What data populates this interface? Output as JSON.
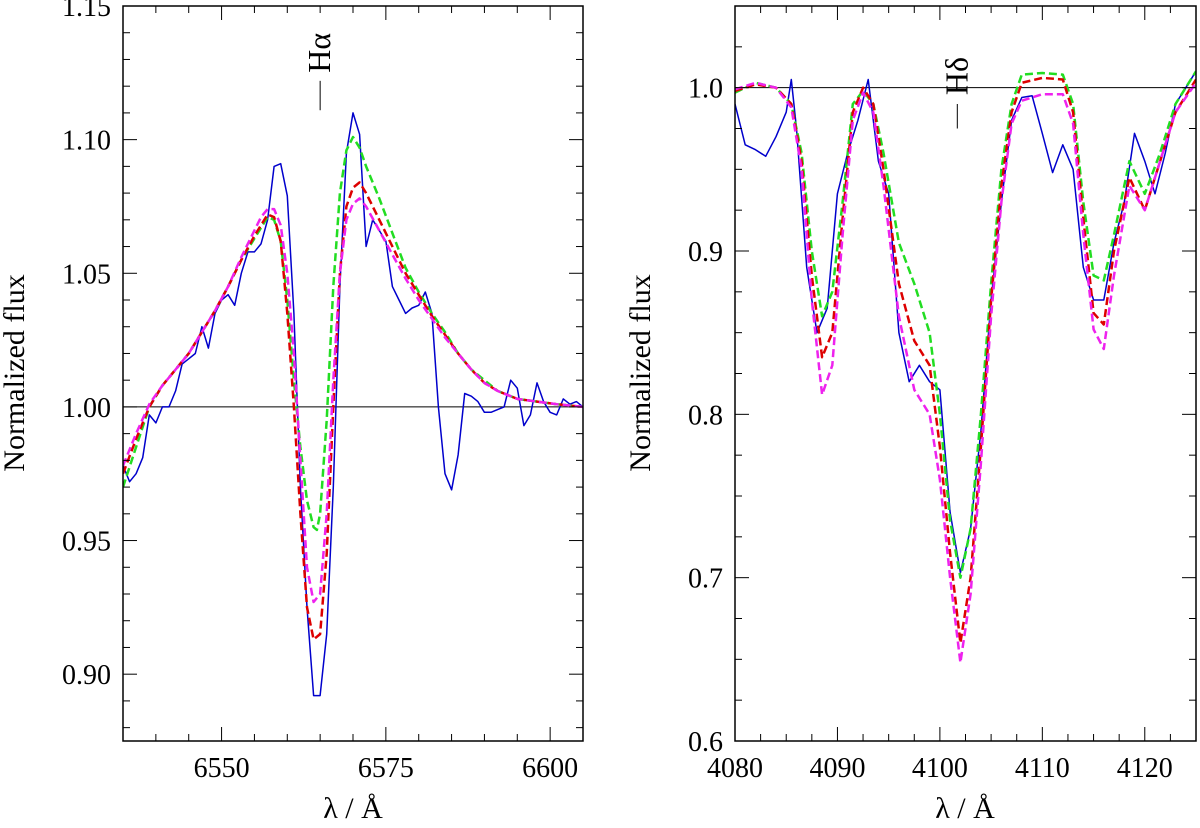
{
  "chart_data": [
    {
      "type": "line",
      "panel": "left",
      "xlabel": "λ / Å",
      "ylabel": "Normalized flux",
      "xlim": [
        6535,
        6605
      ],
      "ylim": [
        0.875,
        1.15
      ],
      "xticks": [
        6550,
        6575,
        6600
      ],
      "xtick_labels": [
        "6550",
        "6575",
        "6600"
      ],
      "yticks": [
        0.9,
        0.95,
        1.0,
        1.05,
        1.1,
        1.15
      ],
      "ytick_labels": [
        "0.90",
        "0.95",
        "1.00",
        "1.05",
        "1.10",
        "1.15"
      ],
      "reference_line": 1.0,
      "line_marker": {
        "label": "Hα",
        "x": 6565,
        "y_from": 1.111,
        "y_to": 1.122
      },
      "series": [
        {
          "name": "observed",
          "color": "#0000cc",
          "dash": "solid",
          "x": [
            6535,
            6536,
            6537,
            6538,
            6539,
            6540,
            6541,
            6542,
            6543,
            6544,
            6545,
            6546,
            6547,
            6548,
            6549,
            6550,
            6551,
            6552,
            6553,
            6554,
            6555,
            6556,
            6557,
            6558,
            6559,
            6560,
            6561,
            6562,
            6563,
            6564,
            6565,
            6566,
            6567,
            6568,
            6569,
            6570,
            6571,
            6572,
            6573,
            6574,
            6575,
            6576,
            6577,
            6578,
            6579,
            6580,
            6581,
            6582,
            6583,
            6584,
            6585,
            6586,
            6587,
            6588,
            6589,
            6590,
            6591,
            6592,
            6593,
            6594,
            6595,
            6596,
            6597,
            6598,
            6599,
            6600,
            6601,
            6602,
            6603,
            6604,
            6605
          ],
          "y": [
            0.978,
            0.972,
            0.975,
            0.981,
            0.997,
            0.994,
            1.0,
            1.0,
            1.006,
            1.016,
            1.018,
            1.02,
            1.03,
            1.022,
            1.035,
            1.04,
            1.042,
            1.038,
            1.05,
            1.058,
            1.058,
            1.061,
            1.07,
            1.09,
            1.091,
            1.079,
            1.035,
            0.97,
            0.925,
            0.892,
            0.892,
            0.915,
            0.97,
            1.045,
            1.095,
            1.11,
            1.102,
            1.06,
            1.07,
            1.066,
            1.062,
            1.045,
            1.04,
            1.035,
            1.037,
            1.038,
            1.043,
            1.035,
            1.0,
            0.975,
            0.969,
            0.982,
            1.005,
            1.004,
            1.002,
            0.998,
            0.998,
            0.999,
            1.0,
            1.01,
            1.007,
            0.993,
            0.997,
            1.009,
            1.002,
            0.998,
            0.997,
            1.003,
            1.001,
            1.002,
            1.0
          ]
        },
        {
          "name": "model green",
          "color": "#22dd22",
          "dash": "dashed",
          "x": [
            6535,
            6537,
            6539,
            6541,
            6543,
            6545,
            6547,
            6549,
            6551,
            6553,
            6555,
            6556,
            6557,
            6558,
            6559,
            6560,
            6561,
            6562,
            6563,
            6564,
            6564.5,
            6565,
            6566,
            6567,
            6568,
            6569,
            6570,
            6571,
            6572,
            6574,
            6576,
            6578,
            6580,
            6582,
            6584,
            6586,
            6588,
            6590,
            6592,
            6595,
            6598,
            6601,
            6605
          ],
          "y": [
            0.97,
            0.985,
            1.0,
            1.008,
            1.014,
            1.02,
            1.028,
            1.036,
            1.045,
            1.055,
            1.063,
            1.067,
            1.071,
            1.07,
            1.062,
            1.04,
            1.01,
            0.985,
            0.965,
            0.955,
            0.954,
            0.96,
            0.995,
            1.045,
            1.08,
            1.096,
            1.101,
            1.097,
            1.09,
            1.078,
            1.065,
            1.052,
            1.043,
            1.035,
            1.028,
            1.02,
            1.014,
            1.01,
            1.006,
            1.003,
            1.002,
            1.001,
            1.0
          ]
        },
        {
          "name": "model red",
          "color": "#dd0000",
          "dash": "dashed",
          "x": [
            6535,
            6537,
            6539,
            6541,
            6543,
            6545,
            6547,
            6549,
            6551,
            6553,
            6555,
            6556,
            6557,
            6558,
            6559,
            6560,
            6561,
            6562,
            6563,
            6564,
            6565,
            6566,
            6567,
            6568,
            6569,
            6570,
            6571,
            6572,
            6574,
            6576,
            6578,
            6580,
            6582,
            6584,
            6586,
            6588,
            6590,
            6592,
            6595,
            6598,
            6601,
            6605
          ],
          "y": [
            0.975,
            0.988,
            1.0,
            1.008,
            1.014,
            1.02,
            1.028,
            1.036,
            1.045,
            1.055,
            1.064,
            1.068,
            1.072,
            1.071,
            1.062,
            1.035,
            1.0,
            0.96,
            0.925,
            0.913,
            0.915,
            0.945,
            1.0,
            1.05,
            1.075,
            1.082,
            1.084,
            1.08,
            1.07,
            1.06,
            1.05,
            1.042,
            1.034,
            1.027,
            1.02,
            1.014,
            1.009,
            1.006,
            1.003,
            1.002,
            1.001,
            1.0
          ]
        },
        {
          "name": "model magenta",
          "color": "#ee22ee",
          "dash": "dashed",
          "x": [
            6535,
            6537,
            6539,
            6541,
            6543,
            6545,
            6547,
            6549,
            6551,
            6553,
            6555,
            6556,
            6557,
            6558,
            6559,
            6560,
            6561,
            6562,
            6563,
            6564,
            6565,
            6566,
            6567,
            6568,
            6569,
            6570,
            6571,
            6572,
            6574,
            6576,
            6578,
            6580,
            6582,
            6584,
            6586,
            6588,
            6590,
            6592,
            6595,
            6598,
            6601,
            6605
          ],
          "y": [
            0.978,
            0.99,
            1.001,
            1.008,
            1.014,
            1.02,
            1.028,
            1.036,
            1.045,
            1.056,
            1.066,
            1.071,
            1.074,
            1.074,
            1.068,
            1.05,
            1.02,
            0.98,
            0.94,
            0.927,
            0.93,
            0.96,
            1.01,
            1.05,
            1.07,
            1.076,
            1.078,
            1.075,
            1.066,
            1.057,
            1.048,
            1.04,
            1.033,
            1.026,
            1.02,
            1.014,
            1.009,
            1.006,
            1.003,
            1.002,
            1.001,
            1.0
          ]
        }
      ]
    },
    {
      "type": "line",
      "panel": "right",
      "xlabel": "λ / Å",
      "ylabel": "Normalized flux",
      "xlim": [
        4080,
        4125
      ],
      "ylim": [
        0.6,
        1.05
      ],
      "xticks": [
        4080,
        4090,
        4100,
        4110,
        4120
      ],
      "xtick_labels": [
        "4080",
        "4090",
        "4100",
        "4110",
        "4120"
      ],
      "yticks": [
        0.6,
        0.7,
        0.8,
        0.9,
        1.0
      ],
      "ytick_labels": [
        "0.6",
        "0.7",
        "0.8",
        "0.9",
        "1.0"
      ],
      "reference_line": 1.0,
      "line_marker": {
        "label": "Hδ",
        "x": 4101.7,
        "y_from": 0.975,
        "y_to": 0.99
      },
      "series": [
        {
          "name": "observed",
          "color": "#0000cc",
          "dash": "solid",
          "x": [
            4080,
            4081,
            4082,
            4083,
            4084,
            4085,
            4085.5,
            4086,
            4087,
            4088,
            4089,
            4090,
            4091,
            4092,
            4093,
            4094,
            4095,
            4096,
            4097,
            4098,
            4099,
            4100,
            4101,
            4102,
            4103,
            4104,
            4105,
            4106,
            4107,
            4108,
            4109,
            4110,
            4111,
            4112,
            4113,
            4114,
            4115,
            4116,
            4117,
            4118,
            4119,
            4120,
            4121,
            4122,
            4123,
            4124,
            4125
          ],
          "y": [
            0.99,
            0.965,
            0.962,
            0.958,
            0.97,
            0.985,
            1.005,
            0.975,
            0.89,
            0.85,
            0.865,
            0.935,
            0.96,
            0.98,
            1.005,
            0.955,
            0.935,
            0.85,
            0.82,
            0.83,
            0.82,
            0.815,
            0.74,
            0.703,
            0.73,
            0.79,
            0.87,
            0.93,
            0.98,
            0.994,
            0.995,
            0.972,
            0.948,
            0.965,
            0.95,
            0.89,
            0.87,
            0.87,
            0.905,
            0.93,
            0.972,
            0.955,
            0.935,
            0.96,
            0.99,
            1.0,
            1.01
          ]
        },
        {
          "name": "model green",
          "color": "#22dd22",
          "dash": "dashed",
          "x": [
            4080,
            4082,
            4084,
            4085.5,
            4086.5,
            4087.5,
            4088.5,
            4089.5,
            4090.5,
            4091.5,
            4092.5,
            4093.5,
            4094.5,
            4096,
            4097.5,
            4099,
            4100,
            4101,
            4102,
            4103,
            4104,
            4105,
            4106,
            4107,
            4108,
            4110,
            4112,
            4113,
            4114,
            4115,
            4116,
            4117,
            4118.5,
            4120,
            4121.5,
            4123,
            4125
          ],
          "y": [
            0.997,
            1.003,
            1.0,
            0.99,
            0.96,
            0.9,
            0.86,
            0.875,
            0.93,
            0.99,
            0.998,
            0.99,
            0.96,
            0.905,
            0.88,
            0.85,
            0.8,
            0.735,
            0.7,
            0.73,
            0.8,
            0.88,
            0.95,
            0.99,
            1.008,
            1.009,
            1.008,
            0.99,
            0.93,
            0.885,
            0.882,
            0.91,
            0.955,
            0.935,
            0.96,
            0.99,
            1.01
          ]
        },
        {
          "name": "model red",
          "color": "#dd0000",
          "dash": "dashed",
          "x": [
            4080,
            4082,
            4084,
            4085.5,
            4086.5,
            4087.5,
            4088.5,
            4089.5,
            4090.5,
            4091.5,
            4092.5,
            4093.5,
            4094.5,
            4096,
            4097.5,
            4099,
            4100,
            4101,
            4102,
            4103,
            4104,
            4105,
            4106,
            4107,
            4108,
            4110,
            4112,
            4113,
            4114,
            4115,
            4116,
            4117,
            4118.5,
            4120,
            4121.5,
            4123,
            4125
          ],
          "y": [
            0.998,
            1.002,
            1.0,
            0.99,
            0.955,
            0.885,
            0.835,
            0.85,
            0.92,
            0.985,
            1.0,
            0.99,
            0.95,
            0.88,
            0.845,
            0.83,
            0.78,
            0.715,
            0.66,
            0.7,
            0.78,
            0.87,
            0.94,
            0.985,
            1.003,
            1.006,
            1.005,
            0.985,
            0.92,
            0.862,
            0.855,
            0.9,
            0.945,
            0.925,
            0.955,
            0.985,
            1.005
          ]
        },
        {
          "name": "model magenta",
          "color": "#ee22ee",
          "dash": "dashed",
          "x": [
            4080,
            4082,
            4084,
            4085.5,
            4086.5,
            4087.5,
            4088.5,
            4089.5,
            4090.5,
            4091.5,
            4092.5,
            4093.5,
            4094.5,
            4096,
            4097.5,
            4099,
            4100,
            4101,
            4102,
            4103,
            4104,
            4105,
            4106,
            4107,
            4108,
            4110,
            4112,
            4113,
            4114,
            4115,
            4116,
            4117,
            4118.5,
            4120,
            4121.5,
            4123,
            4125
          ],
          "y": [
            0.999,
            1.003,
            1.0,
            0.988,
            0.95,
            0.87,
            0.812,
            0.83,
            0.91,
            0.98,
            0.997,
            0.985,
            0.94,
            0.86,
            0.815,
            0.8,
            0.76,
            0.7,
            0.648,
            0.69,
            0.77,
            0.86,
            0.93,
            0.978,
            0.992,
            0.996,
            0.996,
            0.978,
            0.91,
            0.852,
            0.84,
            0.885,
            0.94,
            0.925,
            0.955,
            0.985,
            1.003
          ]
        }
      ]
    }
  ]
}
